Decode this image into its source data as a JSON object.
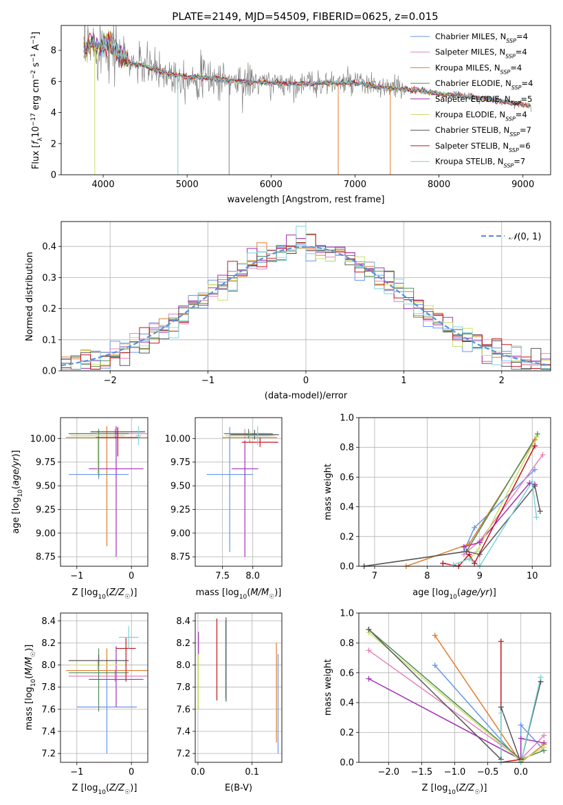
{
  "colors": {
    "Chabrier MILES": "#6495ed",
    "Salpeter MILES": "#e77fbb",
    "Kroupa MILES": "#e07b2a",
    "Chabrier ELODIE": "#4e8a55",
    "Salpeter ELODIE": "#a12fb3",
    "Kroupa ELODIE": "#c8e06a",
    "Chabrier STELIB": "#555555",
    "Salpeter STELIB": "#c0141b",
    "Kroupa STELIB": "#78d4dc",
    "data": "#808080"
  },
  "chart_data": [
    {
      "id": "spectrum",
      "type": "line",
      "title": "PLATE=2149, MJD=54509, FIBERID=0625, z=0.015",
      "xlabel": "wavelength [Angstrom, rest frame]",
      "ylabel": "Flux [f_λ10^{-17} erg cm^{-2} s^{-1} A^{-1}]",
      "xlim": [
        3500,
        9330
      ],
      "ylim": [
        0,
        9.6
      ],
      "xticks": [
        "4000",
        "5000",
        "6000",
        "7000",
        "8000",
        "9000"
      ],
      "yticks": [
        "0",
        "2",
        "4",
        "6",
        "8"
      ],
      "grid": false,
      "legend_position": "top-right",
      "legend": [
        {
          "name": "Chabrier MILES",
          "nssp": "4"
        },
        {
          "name": "Salpeter MILES",
          "nssp": "4"
        },
        {
          "name": "Kroupa MILES",
          "nssp": "4"
        },
        {
          "name": "Chabrier ELODIE",
          "nssp": "4"
        },
        {
          "name": "Salpeter ELODIE",
          "nssp": "5"
        },
        {
          "name": "Kroupa ELODIE",
          "nssp": "4"
        },
        {
          "name": "Chabrier STELIB",
          "nssp": "7"
        },
        {
          "name": "Salpeter STELIB",
          "nssp": "6"
        },
        {
          "name": "Kroupa STELIB",
          "nssp": "7"
        }
      ],
      "continuum": {
        "x": [
          3770,
          3850,
          3950,
          4050,
          4150,
          4300,
          4500,
          4700,
          5000,
          5300,
          5600,
          6000,
          6300,
          6600,
          7000,
          7400,
          7700,
          8000,
          8300,
          8600,
          8900,
          9100
        ],
        "y": [
          7.8,
          8.4,
          8.2,
          8.6,
          8.1,
          7.2,
          7.0,
          6.6,
          6.3,
          6.2,
          6.0,
          5.9,
          5.85,
          5.9,
          5.9,
          5.55,
          5.45,
          5.2,
          5.05,
          4.85,
          4.6,
          4.45
        ]
      }
    },
    {
      "id": "residuals",
      "type": "histogram",
      "xlabel": "(data-model)/error",
      "ylabel": "Normed distribution",
      "xlim": [
        -2.5,
        2.5
      ],
      "ylim": [
        0,
        0.48
      ],
      "xticks": [
        -2,
        -1,
        0,
        1,
        2
      ],
      "yticks": [
        0.0,
        0.1,
        0.2,
        0.3,
        0.4
      ],
      "grid": true,
      "legend_position": "top-right",
      "reference_curve": "N(0,1)",
      "bin_width": 0.1
    },
    {
      "id": "age_vs_Z",
      "type": "errorbar",
      "xlabel": "Z [log10(Z/Z☉)]",
      "ylabel": "age [log10(age/yr)]",
      "xlim": [
        -1.3,
        0.3
      ],
      "ylim": [
        8.65,
        10.22
      ],
      "xticks": [
        -1,
        0
      ],
      "yticks": [
        8.75,
        9.0,
        9.25,
        9.5,
        9.75,
        10.0
      ],
      "grid": true,
      "points": [
        {
          "series": "Chabrier MILES",
          "x": -0.6,
          "xerr": 0.55,
          "y": 9.62,
          "yerr_lo": 0.05,
          "yerr_hi": 0.05
        },
        {
          "series": "Salpeter MILES",
          "x": -0.3,
          "xerr": 0.85,
          "y": 10.05,
          "yerr_lo": 0.05,
          "yerr_hi": 0.05
        },
        {
          "series": "Kroupa MILES",
          "x": -0.45,
          "xerr": 0.75,
          "y": 10.01,
          "yerr_lo": 1.15,
          "yerr_hi": 0.12
        },
        {
          "series": "Chabrier ELODIE",
          "x": -0.6,
          "xerr": 0.55,
          "y": 10.05,
          "yerr_lo": 0.45,
          "yerr_hi": 0.05
        },
        {
          "series": "Salpeter ELODIE",
          "x": -0.28,
          "xerr": 0.5,
          "y": 9.68,
          "yerr_lo": 0.93,
          "yerr_hi": 0.45
        },
        {
          "series": "Kroupa ELODIE",
          "x": -0.62,
          "xerr": 0.5,
          "y": 10.03,
          "yerr_lo": 0.4,
          "yerr_hi": 0.05
        },
        {
          "series": "Chabrier STELIB",
          "x": -0.25,
          "xerr": 0.5,
          "y": 10.07,
          "yerr_lo": 0.05,
          "yerr_hi": 0.05
        },
        {
          "series": "Salpeter STELIB",
          "x": -0.25,
          "xerr": 0.4,
          "y": 10.01,
          "yerr_lo": 0.2,
          "yerr_hi": 0.1
        },
        {
          "series": "Kroupa STELIB",
          "x": 0.13,
          "xerr": 0.05,
          "y": 10.03,
          "yerr_lo": 0.1,
          "yerr_hi": 0.1
        }
      ]
    },
    {
      "id": "age_vs_mass",
      "type": "errorbar",
      "xlabel": "mass [log10(M/M☉)]",
      "ylabel": "",
      "xlim": [
        7.05,
        8.48
      ],
      "ylim": [
        8.65,
        10.22
      ],
      "xticks": [
        7.5,
        8.0
      ],
      "yticks": [
        8.75,
        9.0,
        9.25,
        9.5,
        9.75,
        10.0
      ],
      "grid": true,
      "points": [
        {
          "series": "Chabrier MILES",
          "x": 7.62,
          "xerr": 0.38,
          "y": 9.62,
          "yerr_lo": 0.82,
          "yerr_hi": 0.5
        },
        {
          "series": "Salpeter MILES",
          "x": 7.87,
          "xerr": 0.35,
          "y": 10.05,
          "yerr_lo": 0.05,
          "yerr_hi": 0.05
        },
        {
          "series": "Kroupa MILES",
          "x": 7.95,
          "xerr": 0.45,
          "y": 10.01,
          "yerr_lo": 0.05,
          "yerr_hi": 0.05
        },
        {
          "series": "Chabrier ELODIE",
          "x": 7.93,
          "xerr": 0.4,
          "y": 10.05,
          "yerr_lo": 0.05,
          "yerr_hi": 0.05
        },
        {
          "series": "Salpeter ELODIE",
          "x": 7.87,
          "xerr": 0.22,
          "y": 9.68,
          "yerr_lo": 0.93,
          "yerr_hi": 0.3
        },
        {
          "series": "Kroupa ELODIE",
          "x": 7.95,
          "xerr": 0.4,
          "y": 10.03,
          "yerr_lo": 0.05,
          "yerr_hi": 0.05
        },
        {
          "series": "Chabrier STELIB",
          "x": 8.03,
          "xerr": 0.4,
          "y": 10.04,
          "yerr_lo": 0.05,
          "yerr_hi": 0.05
        },
        {
          "series": "Salpeter STELIB",
          "x": 8.12,
          "xerr": 0.3,
          "y": 9.96,
          "yerr_lo": 0.05,
          "yerr_hi": 0.05
        },
        {
          "series": "Kroupa STELIB",
          "x": 8.08,
          "xerr": 0.2,
          "y": 10.03,
          "yerr_lo": 0.1,
          "yerr_hi": 0.1
        }
      ]
    },
    {
      "id": "massweight_vs_age",
      "type": "line",
      "xlabel": "age [log10(age/yr)]",
      "ylabel": "mass weight",
      "xlim": [
        6.7,
        10.35
      ],
      "ylim": [
        0,
        1.0
      ],
      "xticks": [
        7,
        8,
        9,
        10
      ],
      "yticks": [
        0.0,
        0.2,
        0.4,
        0.6,
        0.8,
        1.0
      ],
      "grid": true,
      "series": [
        {
          "name": "Chabrier MILES",
          "x": [
            8.7,
            8.9,
            10.05
          ],
          "y": [
            0.1,
            0.26,
            0.65
          ]
        },
        {
          "name": "Salpeter MILES",
          "x": [
            8.7,
            9.0,
            10.2
          ],
          "y": [
            0.08,
            0.17,
            0.75
          ]
        },
        {
          "name": "Kroupa MILES",
          "x": [
            7.6,
            8.8,
            10.05
          ],
          "y": [
            0.0,
            0.15,
            0.85
          ]
        },
        {
          "name": "Chabrier ELODIE",
          "x": [
            6.8,
            8.75,
            10.1
          ],
          "y": [
            0.0,
            0.1,
            0.89
          ]
        },
        {
          "name": "Salpeter ELODIE",
          "x": [
            8.7,
            9.0,
            9.95,
            10.05
          ],
          "y": [
            0.13,
            0.16,
            0.56,
            0.55
          ]
        },
        {
          "name": "Kroupa ELODIE",
          "x": [
            8.8,
            8.95,
            10.08
          ],
          "y": [
            0.05,
            0.1,
            0.87
          ]
        },
        {
          "name": "Chabrier STELIB",
          "x": [
            6.8,
            8.75,
            9.0,
            10.05,
            10.15
          ],
          "y": [
            0.0,
            0.1,
            0.08,
            0.54,
            0.37
          ]
        },
        {
          "name": "Salpeter STELIB",
          "x": [
            8.3,
            8.6,
            8.8,
            8.9,
            10.05
          ],
          "y": [
            0.02,
            0.0,
            0.08,
            0.02,
            0.81
          ]
        },
        {
          "name": "Kroupa STELIB",
          "x": [
            8.5,
            8.8,
            9.0,
            10.0,
            10.08
          ],
          "y": [
            0.01,
            0.05,
            0.0,
            0.57,
            0.33
          ]
        }
      ]
    },
    {
      "id": "mass_vs_Z",
      "type": "errorbar",
      "xlabel": "Z [log10(Z/Z☉)]",
      "ylabel": "mass [log10(M/M☉)]",
      "xlim": [
        -1.3,
        0.3
      ],
      "ylim": [
        7.12,
        8.47
      ],
      "xticks": [
        -1,
        0
      ],
      "yticks": [
        7.2,
        7.4,
        7.6,
        7.8,
        8.0,
        8.2,
        8.4
      ],
      "grid": true,
      "points": [
        {
          "series": "Chabrier MILES",
          "x": -0.45,
          "xerr": 0.55,
          "y": 7.62,
          "yerr_lo": 0.42,
          "yerr_hi": 0.45
        },
        {
          "series": "Salpeter MILES",
          "x": -0.3,
          "xerr": 0.85,
          "y": 7.9,
          "yerr_lo": 0.05,
          "yerr_hi": 0.05
        },
        {
          "series": "Kroupa MILES",
          "x": -0.45,
          "xerr": 0.75,
          "y": 7.95,
          "yerr_lo": 0.05,
          "yerr_hi": 0.2
        },
        {
          "series": "Chabrier ELODIE",
          "x": -0.6,
          "xerr": 0.55,
          "y": 7.93,
          "yerr_lo": 0.35,
          "yerr_hi": 0.22
        },
        {
          "series": "Salpeter ELODIE",
          "x": -0.28,
          "xerr": 0.5,
          "y": 7.87,
          "yerr_lo": 0.25,
          "yerr_hi": 0.3
        },
        {
          "series": "Kroupa ELODIE",
          "x": -0.62,
          "xerr": 0.5,
          "y": 8.0,
          "yerr_lo": 0.05,
          "yerr_hi": 0.05
        },
        {
          "series": "Chabrier STELIB",
          "x": -0.6,
          "xerr": 0.55,
          "y": 8.04,
          "yerr_lo": 0.05,
          "yerr_hi": 0.05
        },
        {
          "series": "Salpeter STELIB",
          "x": -0.1,
          "xerr": 0.18,
          "y": 8.15,
          "yerr_lo": 0.3,
          "yerr_hi": 0.1
        },
        {
          "series": "Kroupa STELIB",
          "x": -0.05,
          "xerr": 0.18,
          "y": 8.25,
          "yerr_lo": 0.1,
          "yerr_hi": 0.1
        }
      ]
    },
    {
      "id": "mass_vs_ebv",
      "type": "errorbar",
      "xlabel": "E(B-V)",
      "ylabel": "",
      "xlim": [
        -0.005,
        0.155
      ],
      "ylim": [
        7.12,
        8.47
      ],
      "xticks": [
        0.0,
        0.1
      ],
      "yticks": [
        7.2,
        7.4,
        7.6,
        7.8,
        8.0,
        8.2,
        8.4
      ],
      "grid": true,
      "points": [
        {
          "series": "Kroupa ELODIE",
          "x": 0.001,
          "y": 7.85,
          "yerr_lo": 0.25,
          "yerr_hi": 0.25
        },
        {
          "series": "Salpeter ELODIE",
          "x": 0.001,
          "y": 8.2,
          "yerr_lo": 0.1,
          "yerr_hi": 0.1
        },
        {
          "series": "Salpeter STELIB",
          "x": 0.035,
          "y": 8.05,
          "yerr_lo": 0.37,
          "yerr_hi": 0.37
        },
        {
          "series": "Kroupa STELIB",
          "x": 0.051,
          "y": 8.05,
          "yerr_lo": 0.35,
          "yerr_hi": 0.35
        },
        {
          "series": "Chabrier STELIB",
          "x": 0.052,
          "y": 8.05,
          "yerr_lo": 0.38,
          "yerr_hi": 0.38
        },
        {
          "series": "Kroupa MILES",
          "x": 0.145,
          "y": 7.75,
          "yerr_lo": 0.45,
          "yerr_hi": 0.45
        },
        {
          "series": "Chabrier MILES",
          "x": 0.148,
          "y": 7.65,
          "yerr_lo": 0.45,
          "yerr_hi": 0.45
        }
      ]
    },
    {
      "id": "massweight_vs_Z",
      "type": "line",
      "xlabel": "Z [log10(Z/Z☉)]",
      "ylabel": "mass weight",
      "xlim": [
        -2.45,
        0.45
      ],
      "ylim": [
        0,
        1.0
      ],
      "xticks": [
        -2.0,
        -1.5,
        -1.0,
        -0.5,
        0.0
      ],
      "yticks": [
        0.0,
        0.2,
        0.4,
        0.6,
        0.8,
        1.0
      ],
      "grid": true,
      "series": [
        {
          "name": "Chabrier MILES",
          "x": [
            -1.3,
            0.0,
            0.0,
            0.35
          ],
          "y": [
            0.65,
            0.0,
            0.25,
            0.08
          ]
        },
        {
          "name": "Salpeter MILES",
          "x": [
            -2.3,
            0.0,
            0.35
          ],
          "y": [
            0.75,
            0.02,
            0.18
          ]
        },
        {
          "name": "Kroupa MILES",
          "x": [
            -1.3,
            0.0,
            0.35
          ],
          "y": [
            0.85,
            0.0,
            0.12
          ]
        },
        {
          "name": "Chabrier ELODIE",
          "x": [
            -2.3,
            0.0,
            0.35
          ],
          "y": [
            0.89,
            0.02,
            0.08
          ]
        },
        {
          "name": "Salpeter ELODIE",
          "x": [
            -2.3,
            0.0,
            0.0,
            0.35
          ],
          "y": [
            0.56,
            0.02,
            0.16,
            0.13
          ]
        },
        {
          "name": "Kroupa ELODIE",
          "x": [
            -2.3,
            0.0,
            0.35
          ],
          "y": [
            0.87,
            0.01,
            0.1
          ]
        },
        {
          "name": "Chabrier STELIB",
          "x": [
            -2.3,
            -0.3,
            -0.3,
            0.0,
            0.3
          ],
          "y": [
            0.89,
            0.02,
            0.37,
            0.0,
            0.54
          ]
        },
        {
          "name": "Salpeter STELIB",
          "x": [
            -0.3,
            -0.3,
            0.0
          ],
          "y": [
            0.81,
            0.0,
            0.02
          ]
        },
        {
          "name": "Kroupa STELIB",
          "x": [
            -0.3,
            -0.3,
            0.0,
            0.3
          ],
          "y": [
            0.33,
            0.0,
            0.0,
            0.57
          ]
        }
      ]
    }
  ]
}
